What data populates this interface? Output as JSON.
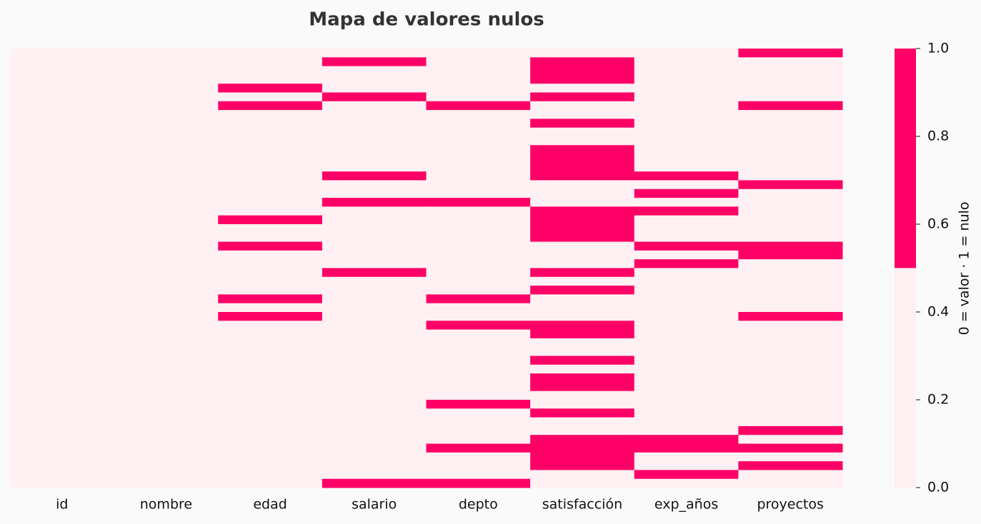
{
  "chart_data": {
    "type": "heatmap",
    "title": "Mapa de valores nulos",
    "categories": [
      "id",
      "nombre",
      "edad",
      "salario",
      "depto",
      "satisfacción",
      "exp_años",
      "proyectos"
    ],
    "colors": [
      "#fff0f3",
      "#ff0066"
    ],
    "colorbar_label": "0 = valor · 1 = nulo",
    "ylim": [
      0,
      1
    ],
    "yticks": [
      {
        "value": 0,
        "label": "0.0"
      },
      0.2,
      0.4,
      0.6,
      0.8,
      {
        "value": 1,
        "label": "1.0"
      }
    ],
    "values": [
      [
        0,
        0,
        0,
        0,
        0,
        0,
        0,
        1
      ],
      [
        0,
        0,
        0,
        1,
        0,
        1,
        0,
        0
      ],
      [
        0,
        0,
        0,
        0,
        0,
        1,
        0,
        0
      ],
      [
        0,
        0,
        0,
        0,
        0,
        1,
        0,
        0
      ],
      [
        0,
        0,
        1,
        0,
        0,
        0,
        0,
        0
      ],
      [
        0,
        0,
        0,
        1,
        0,
        1,
        0,
        0
      ],
      [
        0,
        0,
        1,
        0,
        1,
        0,
        0,
        1
      ],
      [
        0,
        0,
        0,
        0,
        0,
        0,
        0,
        0
      ],
      [
        0,
        0,
        0,
        0,
        0,
        1,
        0,
        0
      ],
      [
        0,
        0,
        0,
        0,
        0,
        0,
        0,
        0
      ],
      [
        0,
        0,
        0,
        0,
        0,
        0,
        0,
        0
      ],
      [
        0,
        0,
        0,
        0,
        0,
        1,
        0,
        0
      ],
      [
        0,
        0,
        0,
        0,
        0,
        1,
        0,
        0
      ],
      [
        0,
        0,
        0,
        0,
        0,
        1,
        0,
        0
      ],
      [
        0,
        0,
        0,
        1,
        0,
        1,
        1,
        0
      ],
      [
        0,
        0,
        0,
        0,
        0,
        0,
        0,
        1
      ],
      [
        0,
        0,
        0,
        0,
        0,
        0,
        1,
        0
      ],
      [
        0,
        0,
        0,
        1,
        1,
        0,
        0,
        0
      ],
      [
        0,
        0,
        0,
        0,
        0,
        1,
        1,
        0
      ],
      [
        0,
        0,
        1,
        0,
        0,
        1,
        0,
        0
      ],
      [
        0,
        0,
        0,
        0,
        0,
        1,
        0,
        0
      ],
      [
        0,
        0,
        0,
        0,
        0,
        1,
        0,
        0
      ],
      [
        0,
        0,
        1,
        0,
        0,
        0,
        1,
        1
      ],
      [
        0,
        0,
        0,
        0,
        0,
        0,
        0,
        1
      ],
      [
        0,
        0,
        0,
        0,
        0,
        0,
        1,
        0
      ],
      [
        0,
        0,
        0,
        1,
        0,
        1,
        0,
        0
      ],
      [
        0,
        0,
        0,
        0,
        0,
        0,
        0,
        0
      ],
      [
        0,
        0,
        0,
        0,
        0,
        1,
        0,
        0
      ],
      [
        0,
        0,
        1,
        0,
        1,
        0,
        0,
        0
      ],
      [
        0,
        0,
        0,
        0,
        0,
        0,
        0,
        0
      ],
      [
        0,
        0,
        1,
        0,
        0,
        0,
        0,
        1
      ],
      [
        0,
        0,
        0,
        0,
        1,
        1,
        0,
        0
      ],
      [
        0,
        0,
        0,
        0,
        0,
        1,
        0,
        0
      ],
      [
        0,
        0,
        0,
        0,
        0,
        0,
        0,
        0
      ],
      [
        0,
        0,
        0,
        0,
        0,
        0,
        0,
        0
      ],
      [
        0,
        0,
        0,
        0,
        0,
        1,
        0,
        0
      ],
      [
        0,
        0,
        0,
        0,
        0,
        0,
        0,
        0
      ],
      [
        0,
        0,
        0,
        0,
        0,
        1,
        0,
        0
      ],
      [
        0,
        0,
        0,
        0,
        0,
        1,
        0,
        0
      ],
      [
        0,
        0,
        0,
        0,
        0,
        0,
        0,
        0
      ],
      [
        0,
        0,
        0,
        0,
        1,
        0,
        0,
        0
      ],
      [
        0,
        0,
        0,
        0,
        0,
        1,
        0,
        0
      ],
      [
        0,
        0,
        0,
        0,
        0,
        0,
        0,
        0
      ],
      [
        0,
        0,
        0,
        0,
        0,
        0,
        0,
        1
      ],
      [
        0,
        0,
        0,
        0,
        0,
        1,
        1,
        0
      ],
      [
        0,
        0,
        0,
        0,
        1,
        1,
        1,
        1
      ],
      [
        0,
        0,
        0,
        0,
        0,
        1,
        0,
        0
      ],
      [
        0,
        0,
        0,
        0,
        0,
        1,
        0,
        1
      ],
      [
        0,
        0,
        0,
        0,
        0,
        0,
        1,
        0
      ],
      [
        0,
        0,
        0,
        1,
        1,
        0,
        0,
        0
      ]
    ]
  }
}
